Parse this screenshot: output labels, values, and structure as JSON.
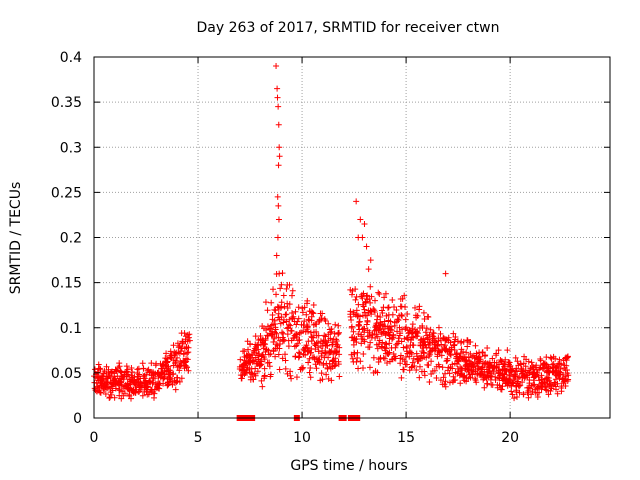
{
  "chart_data": {
    "type": "scatter",
    "title": "Day 263 of 2017, SRMTID for receiver ctwn",
    "xlabel": "GPS time / hours",
    "ylabel": "SRMTID / TECUs",
    "xlim": [
      0,
      24.8
    ],
    "ylim": [
      0,
      0.4
    ],
    "x_ticks": [
      0,
      5,
      10,
      15,
      20
    ],
    "y_ticks": [
      0,
      0.05,
      0.1,
      0.15,
      0.2,
      0.25,
      0.3,
      0.35,
      0.4
    ],
    "x_tick_labels": [
      "0",
      "5",
      "10",
      "15",
      "20"
    ],
    "y_tick_labels": [
      "0",
      "0.05",
      "0.1",
      "0.15",
      "0.2",
      "0.25",
      "0.3",
      "0.35",
      "0.4"
    ],
    "grid": true,
    "marker": "+",
    "color": "#ff0000",
    "data_gaps_hours": [
      [
        4.6,
        7.0
      ],
      [
        11.8,
        12.3
      ]
    ],
    "envelope": [
      {
        "x": 0.0,
        "low": 0.02,
        "high": 0.06
      },
      {
        "x": 1.0,
        "low": 0.02,
        "high": 0.065
      },
      {
        "x": 2.0,
        "low": 0.02,
        "high": 0.06
      },
      {
        "x": 3.0,
        "low": 0.02,
        "high": 0.065
      },
      {
        "x": 4.0,
        "low": 0.03,
        "high": 0.09
      },
      {
        "x": 4.6,
        "low": 0.05,
        "high": 0.11
      },
      {
        "x": 7.0,
        "low": 0.03,
        "high": 0.08
      },
      {
        "x": 8.0,
        "low": 0.03,
        "high": 0.11
      },
      {
        "x": 8.8,
        "low": 0.04,
        "high": 0.18
      },
      {
        "x": 10.0,
        "low": 0.03,
        "high": 0.14
      },
      {
        "x": 11.0,
        "low": 0.03,
        "high": 0.12
      },
      {
        "x": 11.8,
        "low": 0.03,
        "high": 0.11
      },
      {
        "x": 12.3,
        "low": 0.04,
        "high": 0.15
      },
      {
        "x": 13.0,
        "low": 0.05,
        "high": 0.16
      },
      {
        "x": 14.0,
        "low": 0.04,
        "high": 0.14
      },
      {
        "x": 15.0,
        "low": 0.04,
        "high": 0.14
      },
      {
        "x": 16.0,
        "low": 0.04,
        "high": 0.12
      },
      {
        "x": 17.0,
        "low": 0.03,
        "high": 0.1
      },
      {
        "x": 18.0,
        "low": 0.03,
        "high": 0.09
      },
      {
        "x": 19.0,
        "low": 0.03,
        "high": 0.08
      },
      {
        "x": 20.0,
        "low": 0.02,
        "high": 0.075
      },
      {
        "x": 21.0,
        "low": 0.02,
        "high": 0.07
      },
      {
        "x": 22.0,
        "low": 0.02,
        "high": 0.075
      },
      {
        "x": 22.8,
        "low": 0.03,
        "high": 0.08
      }
    ],
    "spike_points": [
      [
        8.75,
        0.39
      ],
      [
        8.8,
        0.365
      ],
      [
        8.82,
        0.355
      ],
      [
        8.85,
        0.345
      ],
      [
        8.88,
        0.325
      ],
      [
        8.9,
        0.3
      ],
      [
        8.92,
        0.29
      ],
      [
        8.87,
        0.28
      ],
      [
        8.83,
        0.245
      ],
      [
        8.86,
        0.235
      ],
      [
        8.89,
        0.22
      ],
      [
        8.84,
        0.2
      ],
      [
        8.78,
        0.18
      ],
      [
        8.9,
        0.16
      ],
      [
        12.6,
        0.24
      ],
      [
        12.8,
        0.22
      ],
      [
        13.0,
        0.215
      ],
      [
        12.9,
        0.2
      ],
      [
        13.1,
        0.19
      ],
      [
        13.3,
        0.175
      ],
      [
        13.2,
        0.165
      ],
      [
        12.7,
        0.2
      ],
      [
        16.9,
        0.16
      ]
    ],
    "zero_points": [
      7.0,
      7.1,
      7.2,
      7.35,
      7.5,
      7.6,
      9.75,
      11.9,
      12.0,
      12.35,
      12.45,
      12.55,
      12.65
    ]
  }
}
